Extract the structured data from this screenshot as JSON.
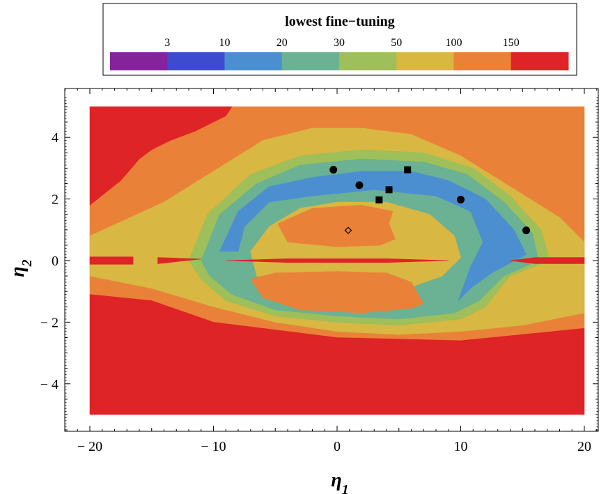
{
  "chart_data": {
    "type": "heatmap",
    "title": "",
    "xlabel": "η",
    "xlabel_sub": "1",
    "ylabel": "η",
    "ylabel_sub": "2",
    "xlim": [
      -22,
      22
    ],
    "ylim": [
      -5.6,
      5.3
    ],
    "data_xlim": [
      -20,
      20
    ],
    "data_ylim": [
      -5,
      5
    ],
    "x_ticks": [
      -20,
      -10,
      0,
      10,
      20
    ],
    "y_ticks": [
      -4,
      -2,
      0,
      2,
      4
    ],
    "x_tick_labels": [
      "− 20",
      "− 10",
      "0",
      "10",
      "20"
    ],
    "y_tick_labels": [
      "− 4",
      "− 2",
      "0",
      "2",
      "4"
    ],
    "legend": {
      "title": "lowest fine−tuning",
      "placement": "top",
      "boundaries": [
        "3",
        "10",
        "20",
        "30",
        "50",
        "100",
        "150"
      ],
      "colors": [
        "#84239a",
        "#3d4ccf",
        "#4b8fd0",
        "#6bb193",
        "#9ebf5a",
        "#d8b743",
        "#e98238",
        "#de2426"
      ]
    },
    "regions": [
      {
        "level": 6,
        "color": "#e98238",
        "polygon": [
          [
            -20,
            1.8
          ],
          [
            -17.5,
            2.6
          ],
          [
            -16,
            3.3
          ],
          [
            -15,
            3.6
          ],
          [
            -13.5,
            3.9
          ],
          [
            -11.5,
            4.2
          ],
          [
            -9,
            4.7
          ],
          [
            -8.5,
            5
          ],
          [
            20,
            5
          ],
          [
            20,
            -2.2
          ],
          [
            10,
            -2.6
          ],
          [
            0,
            -2.5
          ],
          [
            -10,
            -2
          ],
          [
            -15,
            -1.3
          ],
          [
            -20,
            -1.1
          ]
        ]
      },
      {
        "level": 5,
        "color": "#d8b743",
        "polygon": [
          [
            -20,
            0.8
          ],
          [
            -14,
            1.9
          ],
          [
            -10,
            2.9
          ],
          [
            -6,
            3.9
          ],
          [
            -2,
            4.3
          ],
          [
            2,
            4.3
          ],
          [
            6,
            4.1
          ],
          [
            10,
            3.4
          ],
          [
            14,
            2.4
          ],
          [
            18,
            1.4
          ],
          [
            20,
            0.6
          ],
          [
            20,
            -1.7
          ],
          [
            15,
            -2.1
          ],
          [
            10,
            -2.3
          ],
          [
            5,
            -2.4
          ],
          [
            0,
            -2.3
          ],
          [
            -5,
            -2
          ],
          [
            -10,
            -1.5
          ],
          [
            -15,
            -0.9
          ],
          [
            -20,
            -0.5
          ]
        ]
      },
      {
        "level": 4,
        "color": "#9ebf5a",
        "polygon": [
          [
            -12,
            0
          ],
          [
            -10.5,
            1.5
          ],
          [
            -7,
            2.8
          ],
          [
            -3,
            3.4
          ],
          [
            2,
            3.6
          ],
          [
            7,
            3.5
          ],
          [
            11,
            3
          ],
          [
            14,
            2.1
          ],
          [
            16.5,
            1
          ],
          [
            17.2,
            0
          ],
          [
            14,
            -0.5
          ],
          [
            12,
            -1.5
          ],
          [
            10,
            -1.9
          ],
          [
            5,
            -2.1
          ],
          [
            0,
            -2
          ],
          [
            -5,
            -1.8
          ],
          [
            -9,
            -1.3
          ],
          [
            -11,
            -0.6
          ]
        ]
      },
      {
        "level": 3,
        "color": "#6bb193",
        "polygon": [
          [
            -11,
            0
          ],
          [
            -9.5,
            1.5
          ],
          [
            -6.5,
            2.5
          ],
          [
            -3,
            3.1
          ],
          [
            2,
            3.3
          ],
          [
            7,
            3.2
          ],
          [
            10.5,
            2.8
          ],
          [
            13.5,
            1.9
          ],
          [
            15.8,
            0.9
          ],
          [
            16.3,
            0
          ],
          [
            13.5,
            -0.5
          ],
          [
            11.5,
            -1.3
          ],
          [
            9.5,
            -1.7
          ],
          [
            5,
            -1.9
          ],
          [
            0,
            -1.8
          ],
          [
            -5,
            -1.6
          ],
          [
            -8.5,
            -1.1
          ],
          [
            -10.3,
            -0.5
          ]
        ]
      },
      {
        "level": 2,
        "color": "#4b8fd0",
        "polygon": [
          [
            -9.5,
            0.3
          ],
          [
            -8,
            1.6
          ],
          [
            -5.5,
            2.4
          ],
          [
            -2,
            2.7
          ],
          [
            2,
            2.9
          ],
          [
            6,
            2.9
          ],
          [
            9,
            2.6
          ],
          [
            12,
            2
          ],
          [
            14.3,
            1
          ],
          [
            15.3,
            0.2
          ],
          [
            12.5,
            -0.4
          ],
          [
            10.8,
            -0.9
          ],
          [
            9.8,
            -1.3
          ],
          [
            10.8,
            -0.2
          ],
          [
            11.8,
            0.6
          ],
          [
            10.8,
            1.6
          ],
          [
            8,
            2.1
          ],
          [
            3,
            2.3
          ],
          [
            -2,
            2.1
          ],
          [
            -5.5,
            1.9
          ],
          [
            -7.5,
            1.1
          ],
          [
            -8,
            0.3
          ]
        ]
      },
      {
        "level": 3,
        "color": "#6bb193",
        "polygon": [
          [
            -7.7,
            0.4
          ],
          [
            -6.5,
            1.4
          ],
          [
            -4,
            1.9
          ],
          [
            0,
            2.1
          ],
          [
            4,
            2.1
          ],
          [
            8,
            1.7
          ],
          [
            10.3,
            0.9
          ],
          [
            10.8,
            0.1
          ],
          [
            9.2,
            -0.4
          ],
          [
            6,
            -0.9
          ],
          [
            0,
            -1.2
          ],
          [
            -5,
            -1
          ],
          [
            -7.2,
            -0.5
          ]
        ]
      },
      {
        "level": 5,
        "color": "#d8b743",
        "polygon": [
          [
            -7,
            0.3
          ],
          [
            -5.5,
            1.1
          ],
          [
            -3,
            1.7
          ],
          [
            0,
            1.9
          ],
          [
            4,
            1.9
          ],
          [
            7.5,
            1.5
          ],
          [
            9.5,
            0.8
          ],
          [
            10,
            0.1
          ],
          [
            8.5,
            -0.5
          ],
          [
            5,
            -1
          ],
          [
            0,
            -1.1
          ],
          [
            -4.5,
            -0.9
          ],
          [
            -6.5,
            -0.5
          ]
        ]
      },
      {
        "level": 6,
        "color": "#e98238",
        "polygon": [
          [
            -4.8,
            1.2
          ],
          [
            -2,
            1.7
          ],
          [
            2,
            1.8
          ],
          [
            4.5,
            1.6
          ],
          [
            4.2,
            1.2
          ],
          [
            4.7,
            0.7
          ],
          [
            3.5,
            0.5
          ],
          [
            0,
            0.45
          ],
          [
            -4,
            0.6
          ]
        ]
      },
      {
        "level": 6,
        "color": "#e98238",
        "polygon": [
          [
            -7,
            -0.6
          ],
          [
            -5,
            -0.4
          ],
          [
            0,
            -0.35
          ],
          [
            4,
            -0.4
          ],
          [
            6,
            -0.7
          ],
          [
            7,
            -1.4
          ],
          [
            6,
            -1.55
          ],
          [
            2,
            -1.7
          ],
          [
            -3,
            -1.6
          ],
          [
            -6,
            -1.2
          ]
        ]
      },
      {
        "level": 7,
        "color": "#de2426",
        "polygon": [
          [
            -20,
            5
          ],
          [
            -8.5,
            5
          ],
          [
            -9,
            4.7
          ],
          [
            -11.5,
            4.2
          ],
          [
            -13.5,
            3.9
          ],
          [
            -15,
            3.6
          ],
          [
            -16,
            3.3
          ],
          [
            -17.5,
            2.6
          ],
          [
            -20,
            1.8
          ]
        ]
      },
      {
        "level": 7,
        "color": "#de2426",
        "polygon": [
          [
            -20,
            -1.1
          ],
          [
            -15,
            -1.3
          ],
          [
            -10,
            -2
          ],
          [
            0,
            -2.5
          ],
          [
            10,
            -2.6
          ],
          [
            20,
            -2.2
          ],
          [
            20,
            -5
          ],
          [
            -20,
            -5
          ]
        ]
      },
      {
        "level": 7,
        "color": "#de2426",
        "polygon": [
          [
            -20,
            0.12
          ],
          [
            -16.5,
            0.12
          ],
          [
            -16.5,
            -0.12
          ],
          [
            -20,
            -0.12
          ]
        ]
      },
      {
        "level": 7,
        "color": "#de2426",
        "polygon": [
          [
            -14.5,
            0.1
          ],
          [
            -11,
            0.05
          ],
          [
            -14.5,
            -0.1
          ]
        ]
      },
      {
        "level": 7,
        "color": "#de2426",
        "polygon": [
          [
            -9,
            0
          ],
          [
            -4,
            0.06
          ],
          [
            4,
            0.06
          ],
          [
            9,
            0
          ],
          [
            4,
            -0.06
          ],
          [
            -4,
            -0.06
          ]
        ]
      },
      {
        "level": 7,
        "color": "#de2426",
        "polygon": [
          [
            14,
            0
          ],
          [
            16,
            0.1
          ],
          [
            20,
            0.1
          ],
          [
            20,
            -0.1
          ],
          [
            16,
            -0.1
          ]
        ]
      }
    ],
    "markers": [
      {
        "shape": "circle",
        "x": -0.3,
        "y": 2.95
      },
      {
        "shape": "circle",
        "x": 1.8,
        "y": 2.45
      },
      {
        "shape": "circle",
        "x": 10.0,
        "y": 1.98
      },
      {
        "shape": "circle",
        "x": 15.3,
        "y": 0.98
      },
      {
        "shape": "square",
        "x": 3.4,
        "y": 1.97
      },
      {
        "shape": "square",
        "x": 4.2,
        "y": 2.3
      },
      {
        "shape": "square",
        "x": 5.7,
        "y": 2.95
      },
      {
        "shape": "diamond",
        "x": 0.9,
        "y": 0.98
      }
    ]
  }
}
